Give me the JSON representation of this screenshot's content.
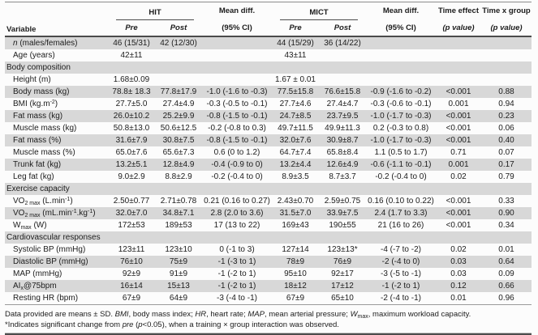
{
  "table": {
    "header": {
      "variable": "Variable",
      "hit": "HIT",
      "mict": "MICT",
      "mean_diff": "Mean diff.",
      "ci": "(95% CI)",
      "time_effect": "Time effect",
      "time_group": "Time x group",
      "p_value": "(p value)",
      "pre": "Pre",
      "post": "Post"
    },
    "rows": [
      {
        "type": "data",
        "label": "_n_ (males/females)",
        "cells": [
          "46 (15/31)",
          "42 (12/30)",
          "",
          "44 (15/29)",
          "36 (14/22)",
          "",
          "",
          ""
        ]
      },
      {
        "type": "data",
        "label": "Age (years)",
        "cells": [
          "42±11",
          "",
          "",
          "43±11",
          "",
          "",
          "",
          ""
        ]
      },
      {
        "type": "section",
        "label": "Body composition"
      },
      {
        "type": "data",
        "label": "Height (m)",
        "cells": [
          "1.68±0.09",
          "",
          "",
          "1.67 ± 0.01",
          "",
          "",
          "",
          ""
        ]
      },
      {
        "type": "data",
        "label": "Body mass (kg)",
        "cells": [
          "78.8± 18.3",
          "77.8±17.9",
          "-1.0 (-1.6 to -0.3)",
          "77.5±15.8",
          "76.6±15.8",
          "-0.9 (-1.6 to -0.2)",
          "<0.001",
          "0.88"
        ]
      },
      {
        "type": "data",
        "label": "BMI (kg.m^-2^)",
        "cells": [
          "27.7±5.0",
          "27.4±4.9",
          "-0.3 (-0.5 to -0.1)",
          "27.7±4.6",
          "27.4±4.7",
          "-0.3 (-0.6 to -0.1)",
          "0.001",
          "0.94"
        ]
      },
      {
        "type": "data",
        "label": "Fat mass (kg)",
        "cells": [
          "26.0±10.2",
          "25.2±9.9",
          "-0.8 (-1.5 to -0.1)",
          "24.7±8.5",
          "23.7±9.5",
          "-1.0 (-1.7 to -0.3)",
          "<0.001",
          "0.23"
        ]
      },
      {
        "type": "data",
        "label": "Muscle mass (kg)",
        "cells": [
          "50.8±13.0",
          "50.6±12.5",
          "-0.2 (-0.8 to 0.3)",
          "49.7±11.5",
          "49.9±11.3",
          "0.2 (-0.3 to 0.8)",
          "<0.001",
          "0.06"
        ]
      },
      {
        "type": "data",
        "label": "Fat mass (%)",
        "cells": [
          "31.6±7.9",
          "30.8±7.5",
          "-0.8 (-1.5 to -0.1)",
          "32.0±7.6",
          "30.9±8.7",
          "-1.0 (-1.7 to -0.3)",
          "<0.001",
          "0.40"
        ]
      },
      {
        "type": "data",
        "label": "Muscle mass (%)",
        "cells": [
          "65.0±7.6",
          "65.6±7.3",
          "0.6 (0 to 1.2)",
          "64.7±7.4",
          "65.8±8.4",
          "1.1 (0.5 to 1.7)",
          "0.71",
          "0.07"
        ]
      },
      {
        "type": "data",
        "label": "Trunk fat (kg)",
        "cells": [
          "13.2±5.1",
          "12.8±4.9",
          "-0.4 (-0.9 to 0)",
          "13.2±4.4",
          "12.6±4.9",
          "-0.6 (-1.1 to -0.1)",
          "0.001",
          "0.17"
        ]
      },
      {
        "type": "data",
        "label": "Leg fat (kg)",
        "cells": [
          "9.0±2.9",
          "8.8±2.9",
          "-0.2 (-0.4 to 0)",
          "8.9±3.5",
          "8.7±3.7",
          "-0.2 (-0.4 to 0)",
          "0.02",
          "0.79"
        ]
      },
      {
        "type": "section",
        "label": "Exercise capacity"
      },
      {
        "type": "data",
        "label": "VO~2 max~ (L.min^-1^)",
        "cells": [
          "2.50±0.77",
          "2.71±0.78",
          "0.21 (0.16 to 0.27)",
          "2.43±0.70",
          "2.59±0.75",
          "0.16 (0.10 to 0.22)",
          "<0.001",
          "0.33"
        ]
      },
      {
        "type": "data",
        "label": "VO~2 max~ (mL.min^-1^.kg^-1^)",
        "cells": [
          "32.0±7.0",
          "34.8±7.1",
          "2.8 (2.0 to 3.6)",
          "31.5±7.0",
          "33.9±7.5",
          "2.4 (1.7 to 3.3)",
          "<0.001",
          "0.90"
        ]
      },
      {
        "type": "data",
        "label": "W~max~ (W)",
        "cells": [
          "172±53",
          "189±53",
          "17 (13 to 22)",
          "169±43",
          "190±55",
          "21 (16 to 26)",
          "<0.001",
          "0.34"
        ]
      },
      {
        "type": "section",
        "label": "Cardiovascular responses"
      },
      {
        "type": "data",
        "label": "Systolic BP (mmHg)",
        "cells": [
          "123±11",
          "123±10",
          "0 (-1 to 3)",
          "127±14",
          "123±13*",
          "-4 (-7 to -2)",
          "0.02",
          "0.01"
        ]
      },
      {
        "type": "data",
        "label": "Diastolic BP (mmHg)",
        "cells": [
          "76±10",
          "75±9",
          "-1 (-3 to 1)",
          "78±9",
          "76±9",
          "-2 (-4 to 0)",
          "0.03",
          "0.64"
        ]
      },
      {
        "type": "data",
        "label": "MAP (mmHg)",
        "cells": [
          "92±9",
          "91±9",
          "-1 (-2 to 1)",
          "95±10",
          "92±17",
          "-3 (-5 to -1)",
          "0.03",
          "0.09"
        ]
      },
      {
        "type": "data",
        "label": "AI~x~@75bpm",
        "cells": [
          "16±14",
          "15±13",
          "-1 (-2 to 1)",
          "18±12",
          "17±12",
          "-1 (-2 to 1)",
          "0.12",
          "0.66"
        ]
      },
      {
        "type": "data",
        "label": "Resting HR (bpm)",
        "cells": [
          "67±9",
          "64±9",
          "-3 (-4 to -1)",
          "67±9",
          "65±10",
          "-2 (-4 to -1)",
          "0.01",
          "0.96"
        ]
      }
    ]
  },
  "footnotes": [
    "Data provided are means ± SD. _BMI_, body mass index; _HR_, heart rate; _MAP_, mean arterial pressure; _W_~max~, maximum workload capacity.",
    "*Indicates significant change from _pre_ (_p_<0.05), when a training × group interaction was observed."
  ]
}
